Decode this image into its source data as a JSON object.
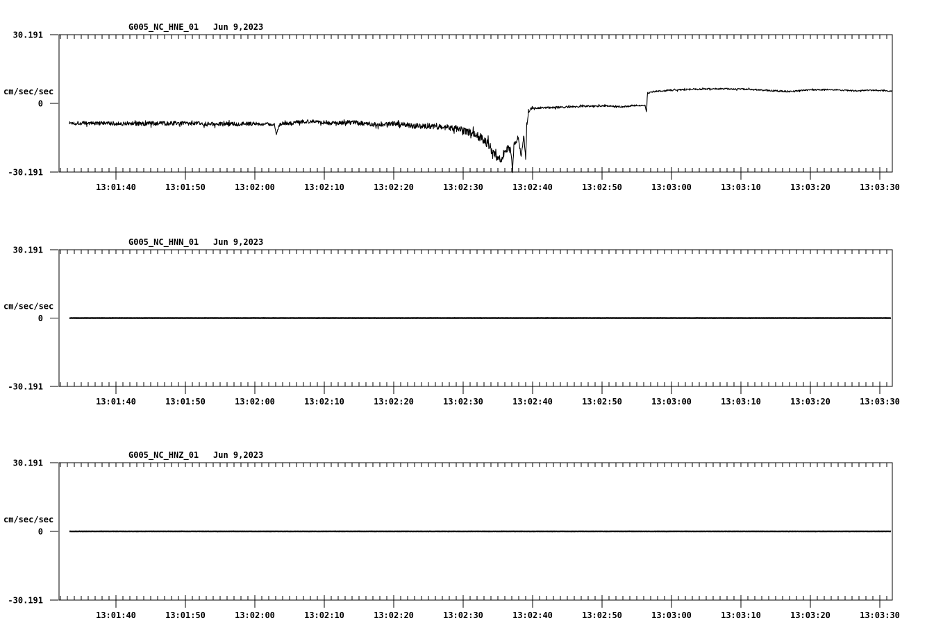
{
  "page": {
    "background": "#ffffff",
    "ink": "#000000",
    "station": "G005",
    "network": "NC",
    "units_label": "cm/sec/sec"
  },
  "chart_data": [
    {
      "type": "line",
      "title": "G005_NC_HNE_01",
      "date": "Jun 9,2023",
      "ylabel": "cm/sec/sec",
      "ylim": [
        -30.191,
        30.191
      ],
      "ytick_values": [
        30.191,
        0,
        -30.191
      ],
      "ytick_labels": [
        "30.191",
        "0",
        "-30.191"
      ],
      "t_ref": "13:01:30",
      "x_window": [
        "13:01:31.8",
        "13:03:31.8"
      ],
      "x_major_ticks": [
        "13:01:40",
        "13:01:50",
        "13:02:00",
        "13:02:10",
        "13:02:20",
        "13:02:30",
        "13:02:40",
        "13:02:50",
        "13:03:00",
        "13:03:10",
        "13:03:20",
        "13:03:30"
      ],
      "minor_tick_sec": 1,
      "line_width": 1.1,
      "grid": false,
      "series": {
        "name": "HNE",
        "points_t_v_noise": [
          [
            3.3,
            -8.6,
            0.9
          ],
          [
            8,
            -8.8,
            0.9
          ],
          [
            14,
            -8.9,
            1.0
          ],
          [
            20,
            -8.7,
            0.9
          ],
          [
            24,
            -9.2,
            1.0
          ],
          [
            28,
            -8.9,
            0.9
          ],
          [
            31,
            -9.0,
            0.8
          ],
          [
            32.8,
            -9.3,
            0.6
          ],
          [
            33.1,
            -13.8,
            0.4
          ],
          [
            33.5,
            -9.5,
            0.8
          ],
          [
            36,
            -8.2,
            0.9
          ],
          [
            38.5,
            -7.8,
            0.8
          ],
          [
            41,
            -8.6,
            0.9
          ],
          [
            44,
            -8.4,
            1.0
          ],
          [
            47,
            -9.3,
            1.1
          ],
          [
            50,
            -9.0,
            1.2
          ],
          [
            53,
            -9.9,
            1.2
          ],
          [
            56,
            -10.2,
            1.3
          ],
          [
            58.5,
            -10.8,
            1.4
          ],
          [
            60.5,
            -12.3,
            1.6
          ],
          [
            62.5,
            -15.0,
            1.9
          ],
          [
            64,
            -19.5,
            2.4
          ],
          [
            64.9,
            -23.5,
            2.0
          ],
          [
            65.5,
            -24.5,
            1.6
          ],
          [
            66.2,
            -19.5,
            2.2
          ],
          [
            66.9,
            -21.5,
            1.8
          ],
          [
            67.1,
            -30.0,
            0.6
          ],
          [
            67.35,
            -17.0,
            1.6
          ],
          [
            67.9,
            -15.5,
            1.4
          ],
          [
            68.35,
            -23.0,
            0.8
          ],
          [
            68.75,
            -14.0,
            1.0
          ],
          [
            69.0,
            -24.5,
            0.6
          ],
          [
            69.15,
            -10.0,
            1.5
          ],
          [
            69.4,
            -3.4,
            0.8
          ],
          [
            69.9,
            -2.1,
            0.45
          ],
          [
            72,
            -1.9,
            0.45
          ],
          [
            75,
            -1.6,
            0.45
          ],
          [
            78,
            -1.2,
            0.4
          ],
          [
            80.5,
            -1.1,
            0.4
          ],
          [
            83,
            -1.5,
            0.4
          ],
          [
            85,
            -0.9,
            0.35
          ],
          [
            86.2,
            -0.9,
            0.3
          ],
          [
            86.42,
            -4.0,
            0.2
          ],
          [
            86.52,
            4.4,
            0.3
          ],
          [
            87.3,
            5.1,
            0.35
          ],
          [
            89.5,
            5.7,
            0.35
          ],
          [
            93,
            6.2,
            0.35
          ],
          [
            97,
            6.4,
            0.35
          ],
          [
            101,
            6.2,
            0.35
          ],
          [
            104.5,
            5.6,
            0.35
          ],
          [
            106.8,
            5.2,
            0.35
          ],
          [
            109.5,
            5.9,
            0.35
          ],
          [
            113,
            6.1,
            0.35
          ],
          [
            116.5,
            5.5,
            0.35
          ],
          [
            119,
            5.8,
            0.3
          ],
          [
            121.8,
            5.4,
            0.25
          ]
        ]
      }
    },
    {
      "type": "line",
      "title": "G005_NC_HNN_01",
      "date": "Jun 9,2023",
      "ylabel": "cm/sec/sec",
      "ylim": [
        -30.191,
        30.191
      ],
      "ytick_values": [
        30.191,
        0,
        -30.191
      ],
      "ytick_labels": [
        "30.191",
        "0",
        "-30.191"
      ],
      "t_ref": "13:01:30",
      "x_window": [
        "13:01:31.8",
        "13:03:31.8"
      ],
      "x_major_ticks": [
        "13:01:40",
        "13:01:50",
        "13:02:00",
        "13:02:10",
        "13:02:20",
        "13:02:30",
        "13:02:40",
        "13:02:50",
        "13:03:00",
        "13:03:10",
        "13:03:20",
        "13:03:30"
      ],
      "minor_tick_sec": 1,
      "line_width": 2.4,
      "grid": false,
      "series": {
        "name": "HNN",
        "points_t_v_noise": [
          [
            3.3,
            0,
            0.04
          ],
          [
            121.6,
            0,
            0.04
          ]
        ]
      }
    },
    {
      "type": "line",
      "title": "G005_NC_HNZ_01",
      "date": "Jun 9,2023",
      "ylabel": "cm/sec/sec",
      "ylim": [
        -30.191,
        30.191
      ],
      "ytick_values": [
        30.191,
        0,
        -30.191
      ],
      "ytick_labels": [
        "30.191",
        "0",
        "-30.191"
      ],
      "t_ref": "13:01:30",
      "x_window": [
        "13:01:31.8",
        "13:03:31.8"
      ],
      "x_major_ticks": [
        "13:01:40",
        "13:01:50",
        "13:02:00",
        "13:02:10",
        "13:02:20",
        "13:02:30",
        "13:02:40",
        "13:02:50",
        "13:03:00",
        "13:03:10",
        "13:03:20",
        "13:03:30"
      ],
      "minor_tick_sec": 1,
      "line_width": 2.4,
      "grid": false,
      "series": {
        "name": "HNZ",
        "points_t_v_noise": [
          [
            3.3,
            0,
            0.04
          ],
          [
            121.6,
            0,
            0.04
          ]
        ]
      }
    }
  ]
}
